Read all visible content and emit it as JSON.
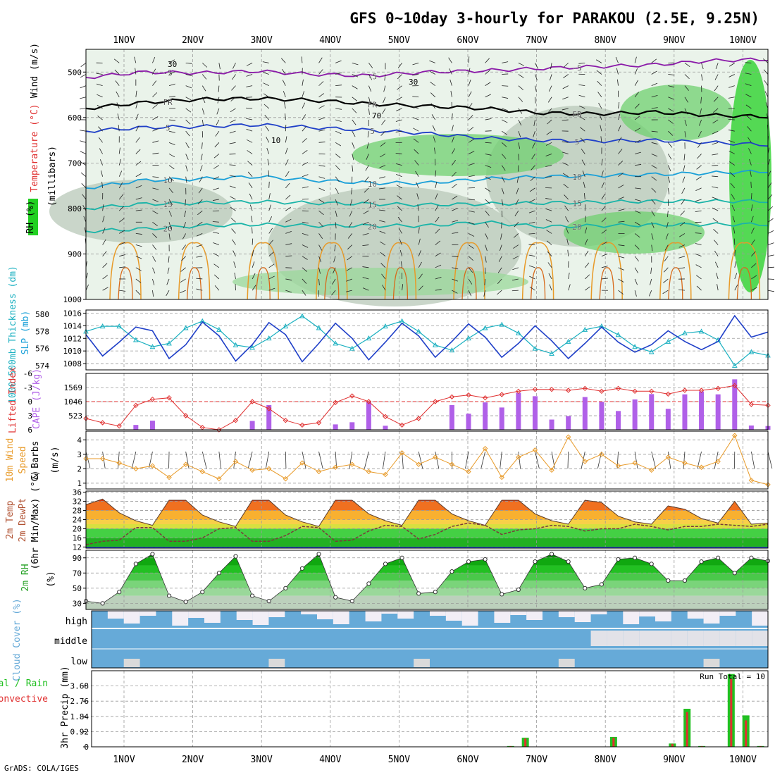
{
  "header": {
    "title": "GFS 0~10day 3-hourly for PARAKOU (2.5E, 9.25N)",
    "footer": "GrADS: COLA/IGES"
  },
  "colors": {
    "purple": "#8a1aa8",
    "blue": "#1f3fc8",
    "cyan": "#1aa0d8",
    "teal": "#1ab4a8",
    "orange": "#e89a28",
    "red": "#e03030",
    "green": "#22c022",
    "cloud": "#66aad8"
  },
  "chart_data": [
    {
      "type": "line",
      "panel": "upper-air",
      "x": [
        "1NOV",
        "2NOV",
        "3NOV",
        "4NOV",
        "5NOV",
        "6NOV",
        "7NOV",
        "8NOV",
        "9NOV",
        "10NOV"
      ],
      "ylim": [
        1000,
        450
      ],
      "yticks": [
        500,
        600,
        700,
        800,
        900,
        1000
      ],
      "ylabel_unit": "(millibars)",
      "labels": {
        "rh": "RH (%)",
        "temperature": "Temperature (°C)",
        "wind": "Wind (m/s)"
      },
      "isotherms": [
        {
          "label": "-5",
          "color": "purple",
          "levels": [
            512,
            500,
            502,
            498,
            505,
            508,
            500,
            497,
            492,
            488,
            484,
            475,
            472
          ]
        },
        {
          "label": "FR",
          "color": "black",
          "levels": [
            580,
            567,
            560,
            558,
            562,
            570,
            575,
            580,
            590,
            592,
            588,
            595,
            598
          ]
        },
        {
          "label": "5",
          "color": "blue",
          "levels": [
            630,
            622,
            620,
            616,
            622,
            628,
            635,
            645,
            650,
            652,
            650,
            655,
            660
          ]
        },
        {
          "label": "10",
          "color": "cyan",
          "levels": [
            755,
            738,
            735,
            730,
            738,
            744,
            744,
            735,
            730,
            728,
            725,
            722,
            718
          ]
        },
        {
          "label": "15",
          "color": "teal",
          "levels": [
            800,
            790,
            788,
            785,
            788,
            790,
            792,
            790,
            788,
            786,
            784,
            784,
            784
          ]
        },
        {
          "label": "20",
          "color": "teal",
          "levels": [
            850,
            845,
            838,
            835,
            838,
            838,
            838,
            830,
            840,
            838,
            836,
            835,
            835
          ]
        }
      ],
      "contour_labels": [
        "30",
        "70",
        "10",
        "30"
      ]
    },
    {
      "type": "line",
      "panel": "thickness-slp",
      "labels": {
        "thickness": "1000-500mb Thickness (dm)",
        "slp": "SLP (mb)"
      },
      "thickness_ticks": [
        574,
        576,
        578,
        580
      ],
      "slp_ticks": [
        1008,
        1010,
        1012,
        1014,
        1016
      ],
      "slp": [
        1012.6,
        1009.2,
        1011.4,
        1013.8,
        1013.2,
        1008.8,
        1011.0,
        1014.6,
        1012.4,
        1008.4,
        1011.0,
        1014.5,
        1012.6,
        1008.3,
        1011.2,
        1014.4,
        1012.0,
        1008.6,
        1011.4,
        1014.4,
        1012.4,
        1009.0,
        1011.5,
        1014.3,
        1012.2,
        1009.0,
        1011.2,
        1014.0,
        1011.6,
        1008.8,
        1011.2,
        1013.8,
        1011.4,
        1009.8,
        1011.0,
        1013.2,
        1011.5,
        1010.2,
        1011.5,
        1015.6,
        1012.2,
        1013.0
      ],
      "thickness": [
        578.0,
        578.6,
        578.6,
        577.0,
        576.2,
        576.6,
        578.4,
        579.2,
        578.2,
        576.4,
        576.1,
        577.2,
        578.6,
        579.8,
        578.4,
        576.6,
        576.0,
        577.2,
        578.6,
        579.2,
        578.0,
        576.4,
        575.8,
        577.2,
        578.4,
        578.8,
        577.8,
        576.0,
        575.4,
        576.8,
        578.2,
        578.6,
        577.6,
        576.2,
        575.6,
        576.8,
        577.8,
        578.0,
        577.0,
        574.0,
        575.6,
        575.2
      ]
    },
    {
      "type": "bar",
      "panel": "li-cape",
      "labels": {
        "li": "Lifted Index",
        "cape": "CAPE (J/kg)"
      },
      "li_ticks": [
        -6,
        -3,
        0,
        3,
        6
      ],
      "cape_ticks": [
        523,
        1046,
        1569
      ],
      "lifted_index": [
        3.6,
        4.5,
        5.2,
        0.8,
        -0.5,
        -0.8,
        3.0,
        5.5,
        6.0,
        4.0,
        0.0,
        1.5,
        4.0,
        5.0,
        4.5,
        0.2,
        -1.2,
        0.0,
        3.2,
        5.0,
        3.6,
        0.0,
        -1.0,
        -1.4,
        -0.8,
        -1.5,
        -2.2,
        -2.6,
        -2.6,
        -2.4,
        -2.8,
        -2.2,
        -2.8,
        -2.2,
        -2.2,
        -1.6,
        -2.4,
        -2.4,
        -2.8,
        -3.4,
        0.6,
        0.8
      ],
      "cape": [
        0,
        0,
        0,
        180,
        340,
        0,
        0,
        0,
        0,
        0,
        330,
        920,
        0,
        0,
        0,
        200,
        280,
        1040,
        150,
        0,
        0,
        0,
        920,
        600,
        1020,
        830,
        1380,
        1250,
        380,
        510,
        1220,
        1040,
        700,
        1130,
        1330,
        780,
        1320,
        1430,
        1320,
        1880,
        160,
        140
      ]
    },
    {
      "type": "line",
      "panel": "wind10m",
      "labels": {
        "wind": "10m Wind Speed & Barbs (m/s)"
      },
      "yticks": [
        1,
        2,
        3,
        4
      ],
      "speed": [
        2.7,
        2.7,
        2.4,
        2.0,
        2.2,
        1.4,
        2.3,
        1.8,
        1.3,
        2.5,
        1.9,
        2.0,
        1.3,
        2.4,
        1.8,
        2.1,
        2.3,
        1.8,
        1.6,
        3.1,
        2.3,
        2.8,
        2.3,
        1.8,
        3.4,
        1.4,
        2.8,
        3.3,
        1.9,
        4.2,
        2.5,
        3.0,
        2.2,
        2.4,
        1.9,
        2.8,
        2.4,
        2.1,
        2.5,
        4.3,
        1.2,
        0.9
      ]
    },
    {
      "type": "area",
      "panel": "temp2m",
      "labels": {
        "temp": "2m Temp",
        "dewpt": "2m DewPt",
        "minmax": "(6hr Min/Max) (°C)"
      },
      "yticks": [
        12,
        16,
        20,
        24,
        28,
        32,
        36
      ],
      "temperature": [
        30.5,
        33.0,
        27.0,
        23.5,
        21.5,
        32.5,
        32.5,
        26.0,
        23.0,
        21.0,
        32.5,
        32.5,
        26.0,
        23.0,
        21.0,
        32.5,
        32.5,
        26.5,
        23.5,
        21.5,
        32.5,
        32.5,
        26.5,
        23.5,
        21.5,
        32.5,
        32.5,
        26.5,
        23.5,
        22.0,
        32.5,
        31.5,
        25.5,
        23.0,
        22.0,
        30.0,
        28.5,
        24.5,
        22.5,
        32.0,
        22.0,
        22.5
      ],
      "dewpoint": [
        13.0,
        14.5,
        15.0,
        20.5,
        20.5,
        14.5,
        14.5,
        16.0,
        20.0,
        20.5,
        14.5,
        14.5,
        17.0,
        21.0,
        20.5,
        14.5,
        15.0,
        19.0,
        21.5,
        21.0,
        15.5,
        17.5,
        21.0,
        22.5,
        21.5,
        17.5,
        19.5,
        20.0,
        21.5,
        21.0,
        19.0,
        20.0,
        20.0,
        22.0,
        21.0,
        19.5,
        21.0,
        21.0,
        22.0,
        21.5,
        21.0,
        22.0
      ]
    },
    {
      "type": "area",
      "panel": "rh2m",
      "labels": {
        "rh": "2m RH (%)"
      },
      "yticks": [
        30,
        50,
        70,
        90
      ],
      "rh": [
        33,
        30,
        45,
        82,
        95,
        40,
        32,
        45,
        70,
        92,
        40,
        33,
        50,
        76,
        95,
        38,
        33,
        56,
        82,
        90,
        43,
        45,
        72,
        85,
        88,
        42,
        48,
        85,
        95,
        85,
        50,
        55,
        88,
        90,
        82,
        60,
        60,
        85,
        90,
        70,
        90,
        86
      ]
    },
    {
      "type": "bar",
      "panel": "cloud",
      "labels": {
        "cloud": "Cloud Cover (%)",
        "high": "high",
        "middle": "middle",
        "low": "low"
      }
    },
    {
      "type": "bar",
      "panel": "precip",
      "labels": {
        "precip": "3hr Precip (mm)",
        "total": "Total / Rain",
        "convective": "Convective",
        "run_total": "Run Total = 10"
      },
      "yticks": [
        0,
        0.92,
        1.84,
        2.76,
        3.68
      ],
      "total": [
        0,
        0,
        0,
        0,
        0,
        0,
        0,
        0,
        0,
        0,
        0,
        0,
        0,
        0,
        0,
        0,
        0,
        0,
        0,
        0,
        0,
        0,
        0,
        0,
        0,
        0,
        0,
        0,
        0.05,
        0.55,
        0,
        0,
        0,
        0,
        0,
        0.6,
        0,
        0,
        0,
        0.2,
        2.3,
        0.05,
        0,
        4.4,
        1.9,
        0.05
      ],
      "convective": [
        0,
        0,
        0,
        0,
        0,
        0,
        0,
        0,
        0,
        0,
        0,
        0,
        0,
        0,
        0,
        0,
        0,
        0,
        0,
        0,
        0,
        0,
        0,
        0,
        0,
        0,
        0,
        0,
        0.04,
        0.5,
        0,
        0,
        0,
        0,
        0,
        0.55,
        0,
        0,
        0,
        0.18,
        2.1,
        0.04,
        0,
        4.1,
        1.6,
        0.04
      ]
    }
  ]
}
